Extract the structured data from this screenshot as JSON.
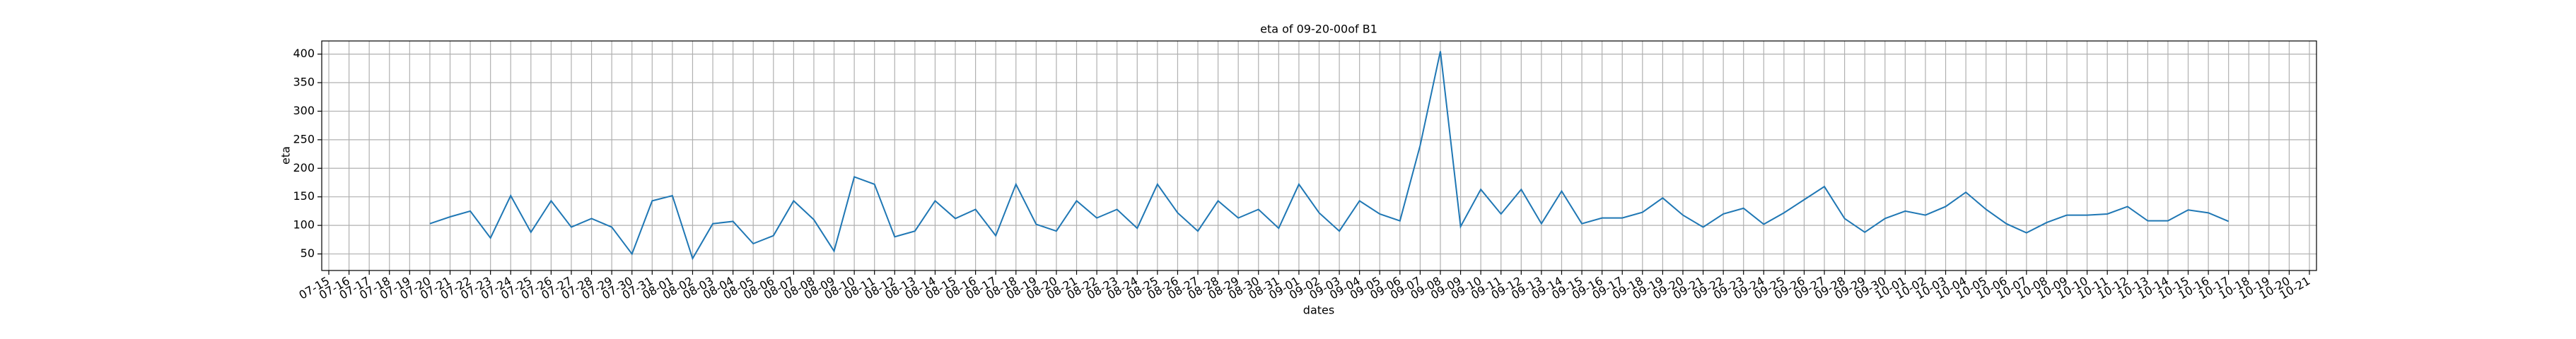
{
  "chart_data": {
    "type": "line",
    "title": "eta of 09-20-00of B1",
    "x_label": "dates",
    "y_label": "eta",
    "categories": [
      "07-15",
      "07-16",
      "07-17",
      "07-18",
      "07-19",
      "07-20",
      "07-21",
      "07-22",
      "07-23",
      "07-24",
      "07-25",
      "07-26",
      "07-27",
      "07-28",
      "07-29",
      "07-30",
      "07-31",
      "08-01",
      "08-02",
      "08-03",
      "08-04",
      "08-05",
      "08-06",
      "08-07",
      "08-08",
      "08-09",
      "08-10",
      "08-11",
      "08-12",
      "08-13",
      "08-14",
      "08-15",
      "08-16",
      "08-17",
      "08-18",
      "08-19",
      "08-20",
      "08-21",
      "08-22",
      "08-23",
      "08-24",
      "08-25",
      "08-26",
      "08-27",
      "08-28",
      "08-29",
      "08-30",
      "08-31",
      "09-01",
      "09-02",
      "09-03",
      "09-04",
      "09-05",
      "09-06",
      "09-07",
      "09-08",
      "09-09",
      "09-10",
      "09-11",
      "09-12",
      "09-13",
      "09-14",
      "09-15",
      "09-16",
      "09-17",
      "09-18",
      "09-19",
      "09-20",
      "09-21",
      "09-22",
      "09-23",
      "09-24",
      "09-25",
      "09-26",
      "09-27",
      "09-28",
      "09-29",
      "09-30",
      "10-01",
      "10-02",
      "10-03",
      "10-04",
      "10-05",
      "10-06",
      "10-07",
      "10-08",
      "10-09",
      "10-10",
      "10-11",
      "10-12",
      "10-13",
      "10-14",
      "10-15",
      "10-16",
      "10-17",
      "10-18",
      "10-19",
      "10-20",
      "10-21"
    ],
    "values": [
      null,
      null,
      null,
      null,
      null,
      103,
      115,
      125,
      78,
      152,
      88,
      143,
      97,
      112,
      97,
      50,
      143,
      152,
      42,
      103,
      107,
      68,
      82,
      143,
      110,
      55,
      185,
      172,
      80,
      90,
      143,
      112,
      128,
      82,
      172,
      102,
      90,
      143,
      113,
      128,
      95,
      172,
      122,
      90,
      143,
      113,
      128,
      95,
      172,
      122,
      90,
      143,
      120,
      108,
      240,
      405,
      98,
      163,
      120,
      163,
      103,
      160,
      103,
      113,
      113,
      123,
      148,
      118,
      97,
      120,
      130,
      102,
      122,
      145,
      168,
      112,
      88,
      112,
      125,
      118,
      133,
      158,
      128,
      103,
      87,
      105,
      118,
      118,
      120,
      133,
      108,
      108,
      127,
      122,
      107,
      null,
      null,
      null,
      null
    ],
    "color": "#1f77b4",
    "ylim": [
      21,
      423
    ],
    "yticks": [
      50,
      100,
      150,
      200,
      250,
      300,
      350,
      400
    ],
    "grid": true
  }
}
